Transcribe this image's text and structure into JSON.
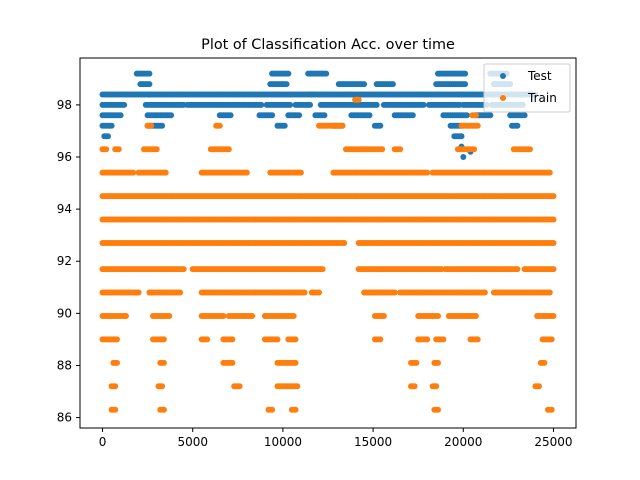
{
  "chart_data": {
    "type": "scatter",
    "title": "Plot of Classification Acc. over time",
    "xlabel": "",
    "ylabel": "",
    "xlim": [
      -1250,
      26250
    ],
    "ylim": [
      85.6,
      99.8
    ],
    "xticks": [
      0,
      5000,
      10000,
      15000,
      20000,
      25000
    ],
    "yticks": [
      86,
      88,
      90,
      92,
      94,
      96,
      98
    ],
    "legend_position": "top-right",
    "grid": false,
    "series": [
      {
        "name": "Test",
        "color": "#1f77b4",
        "levels": [
          {
            "y": 99.2,
            "ranges": [
              [
                1900,
                2600
              ],
              [
                9400,
                10300
              ],
              [
                11400,
                12400
              ],
              [
                18600,
                20100
              ],
              [
                21500,
                22400
              ]
            ]
          },
          {
            "y": 98.8,
            "ranges": [
              [
                2100,
                2600
              ],
              [
                9300,
                10200
              ],
              [
                13100,
                14500
              ],
              [
                15200,
                16100
              ],
              [
                18500,
                20100
              ],
              [
                21700,
                22600
              ]
            ]
          },
          {
            "y": 98.4,
            "ranges": [
              [
                0,
                2600
              ],
              [
                2600,
                11600
              ],
              [
                11600,
                24000
              ]
            ]
          },
          {
            "y": 98.0,
            "ranges": [
              [
                0,
                1200
              ],
              [
                2400,
                4500
              ],
              [
                4700,
                8800
              ],
              [
                9100,
                10400
              ],
              [
                10700,
                11500
              ],
              [
                12100,
                15200
              ],
              [
                15600,
                17800
              ],
              [
                18100,
                19800
              ],
              [
                20000,
                21300
              ],
              [
                21600,
                23300
              ]
            ]
          },
          {
            "y": 97.6,
            "ranges": [
              [
                0,
                1000
              ],
              [
                2500,
                3800
              ],
              [
                6500,
                7100
              ],
              [
                8700,
                9400
              ],
              [
                10300,
                10900
              ],
              [
                11800,
                12300
              ],
              [
                13800,
                14800
              ],
              [
                16200,
                17200
              ],
              [
                18900,
                20200
              ],
              [
                20700,
                21500
              ],
              [
                22600,
                23400
              ]
            ]
          },
          {
            "y": 97.2,
            "ranges": [
              [
                0,
                500
              ],
              [
                2500,
                3300
              ],
              [
                9700,
                10100
              ],
              [
                12800,
                13300
              ],
              [
                15100,
                15400
              ],
              [
                19300,
                19900
              ],
              [
                22700,
                23000
              ]
            ]
          },
          {
            "y": 96.8,
            "ranges": [
              [
                100,
                300
              ],
              [
                19500,
                19900
              ]
            ]
          }
        ],
        "points": [
          [
            20000,
            96.0
          ],
          [
            19900,
            96.4
          ],
          [
            20400,
            96.2
          ]
        ]
      },
      {
        "name": "Train",
        "color": "#ff7f0e",
        "levels": [
          {
            "y": 98.2,
            "ranges": [
              [
                14000,
                14200
              ]
            ]
          },
          {
            "y": 97.6,
            "ranges": [
              [
                20500,
                20700
              ]
            ]
          },
          {
            "y": 97.2,
            "ranges": [
              [
                2500,
                2700
              ],
              [
                6300,
                6500
              ],
              [
                12000,
                13300
              ],
              [
                19900,
                20800
              ]
            ]
          },
          {
            "y": 96.3,
            "ranges": [
              [
                0,
                200
              ],
              [
                700,
                900
              ],
              [
                2300,
                3000
              ],
              [
                6000,
                7000
              ],
              [
                13500,
                15500
              ],
              [
                16200,
                16500
              ],
              [
                19700,
                20600
              ],
              [
                22800,
                23700
              ]
            ]
          },
          {
            "y": 95.4,
            "ranges": [
              [
                0,
                1700
              ],
              [
                2000,
                3500
              ],
              [
                5500,
                8000
              ],
              [
                9300,
                11000
              ],
              [
                12800,
                18000
              ],
              [
                18300,
                24800
              ]
            ]
          },
          {
            "y": 94.5,
            "ranges": [
              [
                0,
                25000
              ]
            ]
          },
          {
            "y": 93.6,
            "ranges": [
              [
                0,
                25000
              ]
            ]
          },
          {
            "y": 92.7,
            "ranges": [
              [
                0,
                13400
              ],
              [
                14200,
                25000
              ]
            ]
          },
          {
            "y": 91.7,
            "ranges": [
              [
                0,
                2300
              ],
              [
                2400,
                4500
              ],
              [
                5000,
                12200
              ],
              [
                14200,
                18800
              ],
              [
                19000,
                23000
              ],
              [
                23400,
                25000
              ]
            ]
          },
          {
            "y": 90.8,
            "ranges": [
              [
                0,
                2000
              ],
              [
                2600,
                4300
              ],
              [
                5500,
                11200
              ],
              [
                11600,
                12000
              ],
              [
                14500,
                16200
              ],
              [
                16500,
                21200
              ],
              [
                21700,
                24800
              ]
            ]
          },
          {
            "y": 89.9,
            "ranges": [
              [
                0,
                1300
              ],
              [
                2800,
                3700
              ],
              [
                5500,
                6700
              ],
              [
                7000,
                8300
              ],
              [
                9000,
                10600
              ],
              [
                15100,
                15600
              ],
              [
                17500,
                18600
              ],
              [
                19200,
                20700
              ],
              [
                24100,
                25000
              ]
            ]
          },
          {
            "y": 89.0,
            "ranges": [
              [
                0,
                800
              ],
              [
                2800,
                3400
              ],
              [
                5500,
                5800
              ],
              [
                6700,
                7200
              ],
              [
                9000,
                9700
              ],
              [
                10300,
                10700
              ],
              [
                15100,
                15400
              ],
              [
                17500,
                18000
              ],
              [
                18500,
                18900
              ],
              [
                20400,
                20800
              ],
              [
                24400,
                24900
              ]
            ]
          },
          {
            "y": 88.1,
            "ranges": [
              [
                600,
                800
              ],
              [
                3200,
                3400
              ],
              [
                6700,
                7200
              ],
              [
                9700,
                10700
              ],
              [
                17100,
                17400
              ],
              [
                18400,
                18600
              ],
              [
                24300,
                24500
              ]
            ]
          },
          {
            "y": 87.2,
            "ranges": [
              [
                500,
                700
              ],
              [
                3100,
                3300
              ],
              [
                7300,
                7600
              ],
              [
                9700,
                10800
              ],
              [
                17100,
                17300
              ],
              [
                18300,
                18500
              ],
              [
                24000,
                24200
              ]
            ]
          },
          {
            "y": 86.3,
            "ranges": [
              [
                500,
                700
              ],
              [
                3200,
                3400
              ],
              [
                9200,
                9400
              ],
              [
                10500,
                10700
              ],
              [
                18400,
                18600
              ],
              [
                24700,
                24900
              ]
            ]
          }
        ],
        "points": []
      }
    ]
  }
}
